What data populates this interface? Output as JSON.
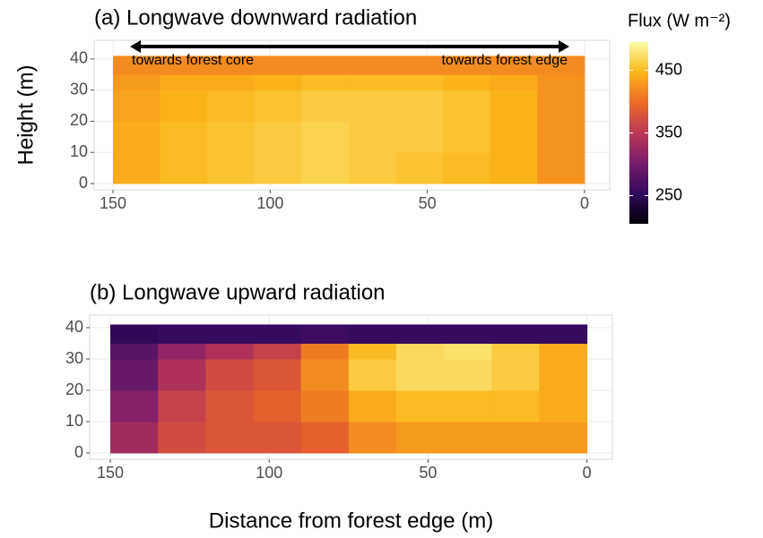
{
  "chart_data": [
    {
      "type": "heatmap",
      "title": "(a) Longwave downward radiation",
      "ylabel": "Height (m)",
      "x": [
        150,
        135,
        120,
        105,
        90,
        75,
        60,
        45,
        30,
        15,
        0
      ],
      "y": [
        0,
        10,
        20,
        30,
        35,
        41
      ],
      "values": [
        [
          440,
          450,
          455,
          460,
          465,
          460,
          455,
          450,
          445,
          425
        ],
        [
          440,
          450,
          455,
          460,
          465,
          460,
          460,
          455,
          445,
          425
        ],
        [
          435,
          445,
          450,
          455,
          460,
          460,
          460,
          455,
          445,
          425
        ],
        [
          430,
          440,
          440,
          445,
          450,
          450,
          450,
          445,
          440,
          425
        ],
        [
          420,
          420,
          420,
          420,
          420,
          420,
          420,
          420,
          420,
          420
        ]
      ],
      "xlim": [
        156,
        -8
      ],
      "ylim": [
        -2,
        46
      ],
      "xticks": [
        150,
        100,
        50,
        0
      ],
      "yticks": [
        0,
        10,
        20,
        30,
        40
      ],
      "grid": true,
      "annotations": [
        "towards forest core",
        "towards forest edge"
      ],
      "colorbar": {
        "title": "Flux (W m⁻²)",
        "lim": [
          205,
          495
        ],
        "ticks": [
          250,
          350,
          450
        ],
        "colors": [
          "#000004",
          "#320a5e",
          "#781c6d",
          "#bc3754",
          "#ed6925",
          "#fbb61a",
          "#fcffa4"
        ]
      }
    },
    {
      "type": "heatmap",
      "title": "(b) Longwave upward radiation",
      "xlabel": "Distance from forest edge (m)",
      "x": [
        150,
        135,
        120,
        105,
        90,
        75,
        60,
        45,
        30,
        15,
        0
      ],
      "y": [
        0,
        10,
        20,
        30,
        35,
        41
      ],
      "values": [
        [
          330,
          370,
          380,
          380,
          390,
          420,
          430,
          430,
          430,
          430
        ],
        [
          310,
          360,
          380,
          390,
          410,
          440,
          450,
          450,
          450,
          440
        ],
        [
          290,
          340,
          370,
          380,
          420,
          460,
          470,
          470,
          460,
          440
        ],
        [
          280,
          320,
          340,
          360,
          410,
          450,
          470,
          475,
          460,
          440
        ],
        [
          250,
          255,
          255,
          255,
          260,
          255,
          255,
          255,
          255,
          255
        ]
      ],
      "xlim": [
        156.5,
        -8
      ],
      "ylim": [
        -2,
        44
      ],
      "xticks": [
        150,
        100,
        50,
        0
      ],
      "yticks": [
        0,
        10,
        20,
        30,
        40
      ],
      "grid": true
    }
  ]
}
